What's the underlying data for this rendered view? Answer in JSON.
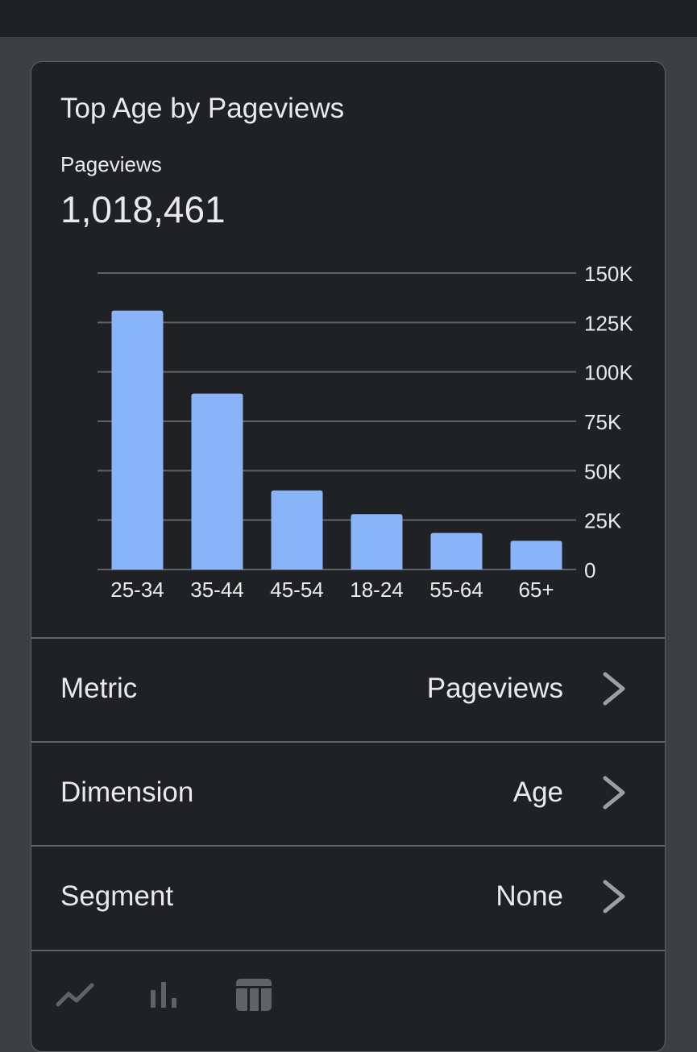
{
  "card": {
    "title": "Top Age by Pageviews",
    "metric_label": "Pageviews",
    "metric_total": "1,018,461"
  },
  "chart_data": {
    "type": "bar",
    "categories": [
      "25-34",
      "35-44",
      "45-54",
      "18-24",
      "55-64",
      "65+"
    ],
    "values": [
      131000,
      89000,
      40000,
      28000,
      18500,
      14500
    ],
    "ylim": [
      0,
      150000
    ],
    "yticks": [
      0,
      25000,
      50000,
      75000,
      100000,
      125000,
      150000
    ],
    "ytick_labels": [
      "0",
      "25K",
      "50K",
      "75K",
      "100K",
      "125K",
      "150K"
    ],
    "y_axis_side": "right",
    "grid": true,
    "bar_color": "#8ab4f8",
    "grid_color": "#5f6368",
    "label_color": "#e8eaed"
  },
  "settings": {
    "metric": {
      "label": "Metric",
      "value": "Pageviews"
    },
    "dimension": {
      "label": "Dimension",
      "value": "Age"
    },
    "segment": {
      "label": "Segment",
      "value": "None"
    }
  },
  "view_tabs": [
    {
      "icon": "line-chart-icon",
      "active": false
    },
    {
      "icon": "bar-chart-icon",
      "active": true
    },
    {
      "icon": "table-icon",
      "active": false
    }
  ],
  "colors": {
    "background": "#3c4043",
    "card": "#202124",
    "divider": "#5f6368",
    "text": "#e8eaed",
    "icon_muted": "#5f6368",
    "chevron": "#9aa0a6"
  }
}
